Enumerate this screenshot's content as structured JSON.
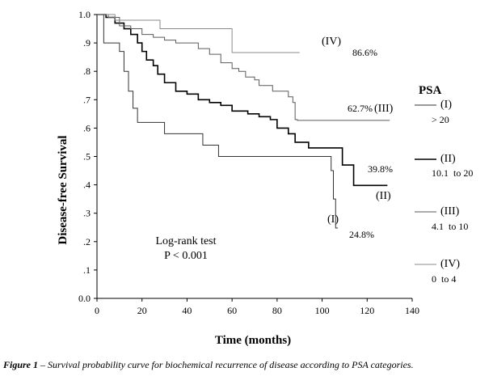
{
  "caption": {
    "prefix": "Figure 1",
    "text": " – Survival probability curve for biochemical recurrence of disease according to PSA categories."
  },
  "chart_data": {
    "type": "line",
    "step": true,
    "xlabel": "Time (months)",
    "ylabel": "Disease-free Survival",
    "xlim": [
      0,
      140
    ],
    "ylim": [
      0,
      1
    ],
    "xticks": [
      "0",
      "20",
      "40",
      "60",
      "80",
      "100",
      "120",
      "140"
    ],
    "yticks": [
      "0.0",
      ".1",
      ".2",
      ".3",
      ".4",
      ".5",
      ".6",
      ".7",
      ".8",
      ".9",
      "1.0"
    ],
    "grid": false,
    "annotation": {
      "line1": "Log-rank test",
      "line2": "P < 0.001"
    },
    "legend": {
      "title": "PSA",
      "items": [
        {
          "label": "(I)",
          "range": "> 20"
        },
        {
          "label": "(II)",
          "range": "10.1  to 20"
        },
        {
          "label": "(III)",
          "range": "4.1  to 10"
        },
        {
          "label": "(IV)",
          "range": "0  to 4"
        }
      ]
    },
    "series": [
      {
        "name": "(I)",
        "end_label": "24.8%",
        "color": "#333333",
        "width": 1,
        "points": [
          [
            0,
            1.0
          ],
          [
            3,
            0.9
          ],
          [
            8,
            0.9
          ],
          [
            10,
            0.87
          ],
          [
            12,
            0.8
          ],
          [
            14,
            0.73
          ],
          [
            16,
            0.67
          ],
          [
            18,
            0.62
          ],
          [
            28,
            0.62
          ],
          [
            30,
            0.58
          ],
          [
            45,
            0.58
          ],
          [
            47,
            0.54
          ],
          [
            53,
            0.54
          ],
          [
            54,
            0.5
          ],
          [
            103,
            0.5
          ],
          [
            104,
            0.45
          ],
          [
            105,
            0.35
          ],
          [
            106,
            0.248
          ],
          [
            107,
            0.248
          ]
        ]
      },
      {
        "name": "(II)",
        "end_label": "39.8%",
        "color": "#000000",
        "width": 1.6,
        "points": [
          [
            0,
            1.0
          ],
          [
            4,
            0.99
          ],
          [
            8,
            0.97
          ],
          [
            12,
            0.95
          ],
          [
            15,
            0.93
          ],
          [
            18,
            0.9
          ],
          [
            20,
            0.87
          ],
          [
            22,
            0.84
          ],
          [
            25,
            0.82
          ],
          [
            27,
            0.79
          ],
          [
            30,
            0.76
          ],
          [
            35,
            0.73
          ],
          [
            40,
            0.72
          ],
          [
            45,
            0.7
          ],
          [
            50,
            0.69
          ],
          [
            55,
            0.68
          ],
          [
            60,
            0.66
          ],
          [
            67,
            0.65
          ],
          [
            72,
            0.64
          ],
          [
            77,
            0.63
          ],
          [
            80,
            0.6
          ],
          [
            85,
            0.58
          ],
          [
            88,
            0.55
          ],
          [
            93,
            0.55
          ],
          [
            94,
            0.53
          ],
          [
            108,
            0.53
          ],
          [
            109,
            0.47
          ],
          [
            113,
            0.47
          ],
          [
            114,
            0.398
          ],
          [
            129,
            0.398
          ]
        ]
      },
      {
        "name": "(III)",
        "end_label": "62.7%",
        "color": "#5a5a5a",
        "width": 1,
        "points": [
          [
            0,
            1.0
          ],
          [
            5,
            0.99
          ],
          [
            10,
            0.96
          ],
          [
            15,
            0.95
          ],
          [
            20,
            0.93
          ],
          [
            25,
            0.92
          ],
          [
            30,
            0.91
          ],
          [
            35,
            0.9
          ],
          [
            40,
            0.9
          ],
          [
            45,
            0.88
          ],
          [
            50,
            0.86
          ],
          [
            55,
            0.83
          ],
          [
            60,
            0.81
          ],
          [
            63,
            0.8
          ],
          [
            66,
            0.78
          ],
          [
            70,
            0.77
          ],
          [
            72,
            0.75
          ],
          [
            75,
            0.75
          ],
          [
            78,
            0.73
          ],
          [
            82,
            0.73
          ],
          [
            85,
            0.71
          ],
          [
            87,
            0.69
          ],
          [
            88,
            0.63
          ],
          [
            89,
            0.627
          ],
          [
            130,
            0.627
          ]
        ]
      },
      {
        "name": "(IV)",
        "end_label": "86.6%",
        "color": "#8a8a8a",
        "width": 1,
        "points": [
          [
            0,
            1.0
          ],
          [
            8,
            0.98
          ],
          [
            20,
            0.98
          ],
          [
            28,
            0.95
          ],
          [
            58,
            0.95
          ],
          [
            60,
            0.866
          ],
          [
            90,
            0.866
          ]
        ]
      }
    ]
  }
}
